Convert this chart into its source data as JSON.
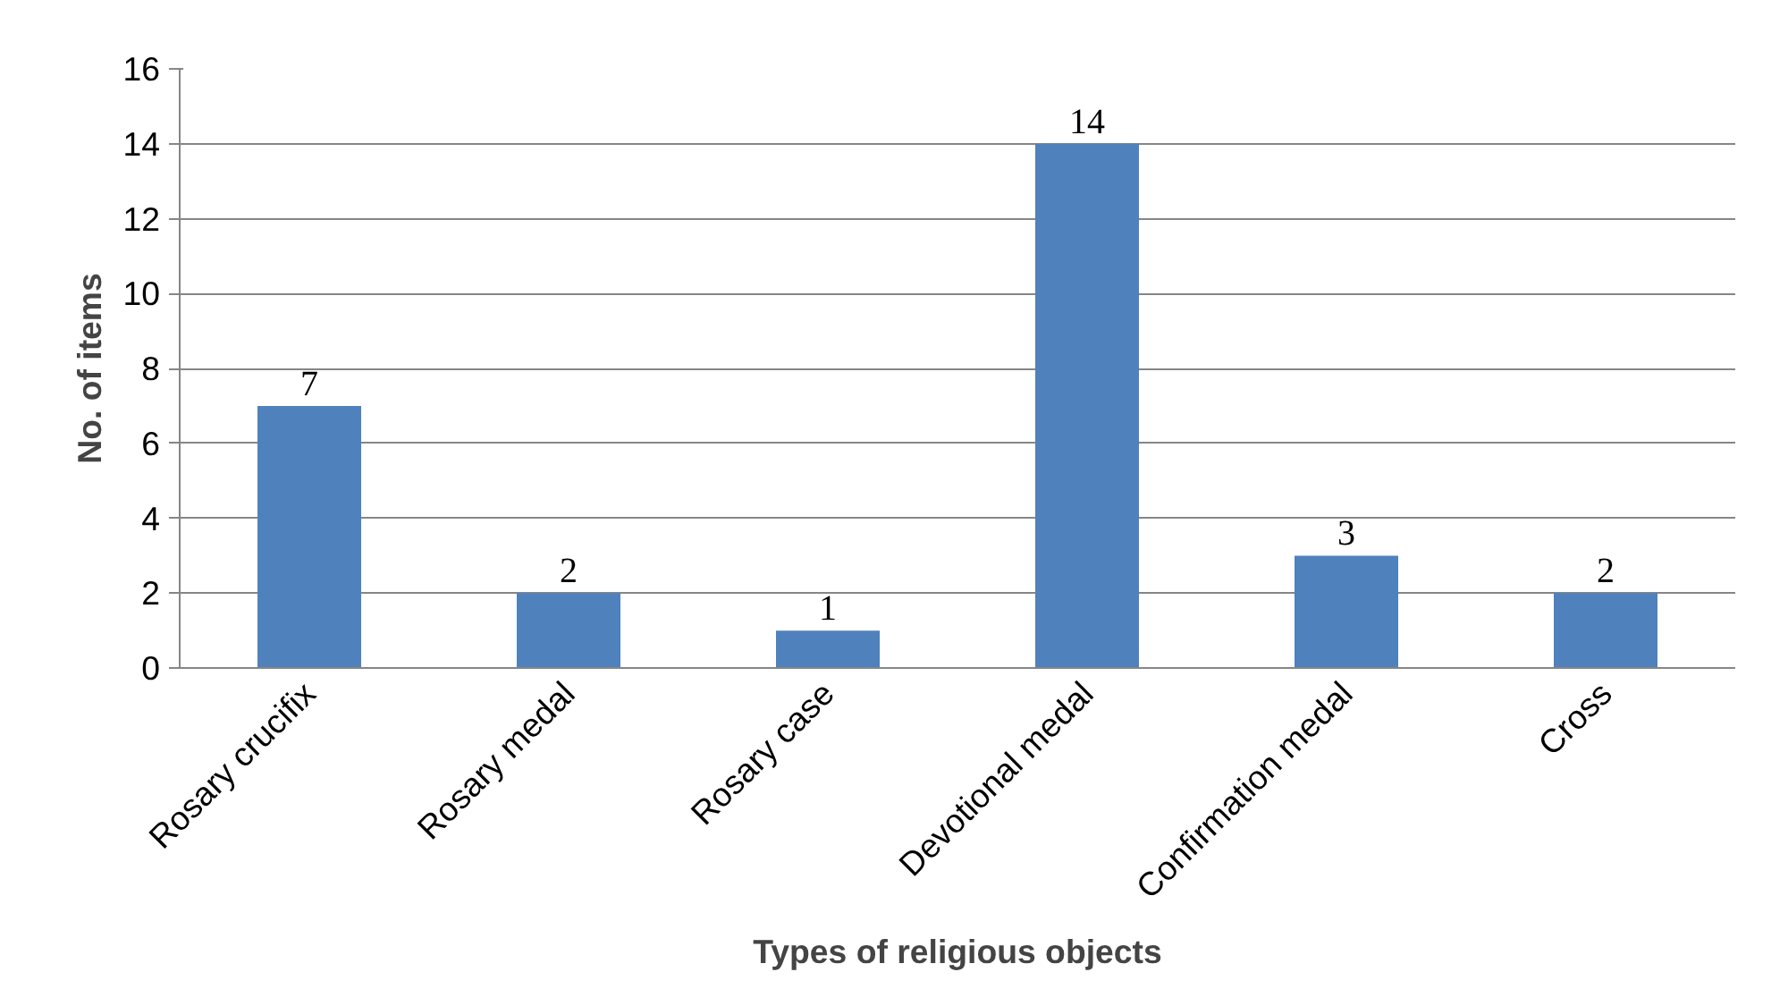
{
  "chart_data": {
    "type": "bar",
    "xlabel": "Types of religious objects",
    "ylabel": "No. of items",
    "categories": [
      "Rosary crucifix",
      "Rosary medal",
      "Rosary case",
      "Devotional medal",
      "Confirmation medal",
      "Cross"
    ],
    "values": [
      7,
      2,
      1,
      14,
      3,
      2
    ],
    "color": "#4f81bd",
    "ylim": [
      0,
      16
    ],
    "yticks": [
      0,
      2,
      4,
      6,
      8,
      10,
      12,
      14,
      16
    ],
    "grid": "y",
    "data_labels": true
  }
}
